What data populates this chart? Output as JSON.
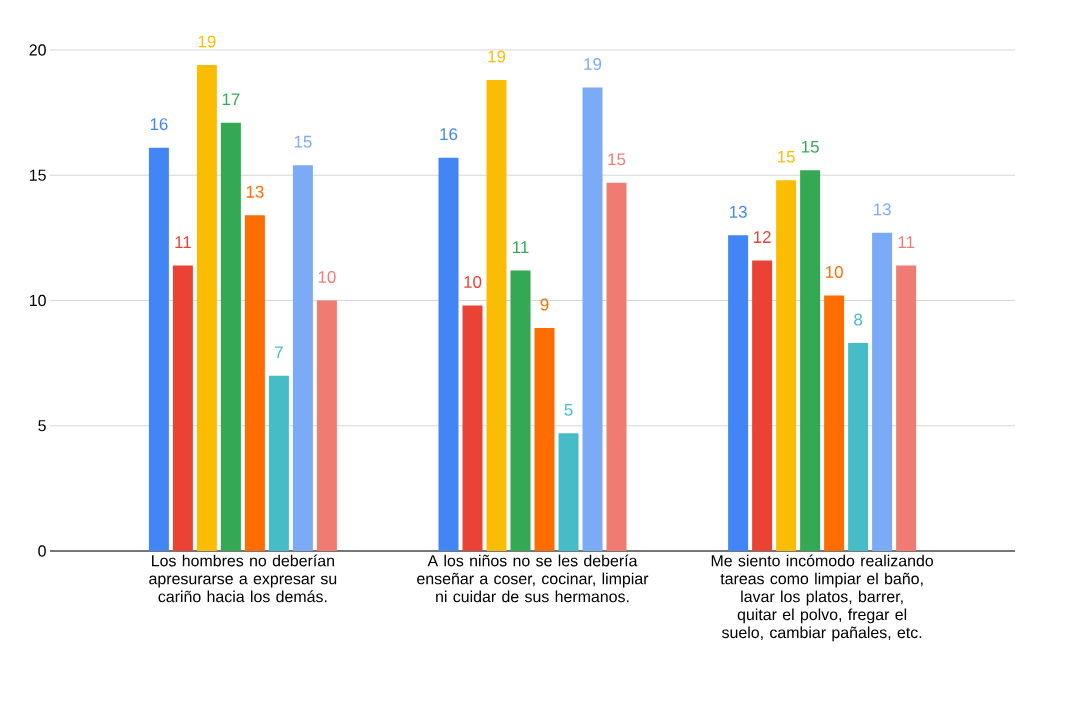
{
  "chart_data": {
    "type": "bar",
    "categories": [
      "Los hombres no deberían apresurarse a expresar su cariño hacia los demás.",
      "A los niños no se les debería enseñar a coser, cocinar, limpiar ni cuidar de sus hermanos.",
      "Me siento incómodo realizando tareas como limpiar el baño, lavar los platos, barrer, quitar el polvo, fregar el suelo, cambiar pañales, etc."
    ],
    "series": [
      {
        "color": "#4285f4",
        "values": [
          16.1,
          15.7,
          12.6
        ],
        "value_labels": [
          "16",
          "16",
          "13"
        ]
      },
      {
        "color": "#ea4335",
        "values": [
          11.4,
          9.8,
          11.6
        ],
        "value_labels": [
          "11",
          "10",
          "12"
        ]
      },
      {
        "color": "#fbbc04",
        "values": [
          19.4,
          18.8,
          14.8
        ],
        "value_labels": [
          "19",
          "19",
          "15"
        ]
      },
      {
        "color": "#34a853",
        "values": [
          17.1,
          11.2,
          15.2
        ],
        "value_labels": [
          "17",
          "11",
          "15"
        ]
      },
      {
        "color": "#ff6d01",
        "values": [
          13.4,
          8.9,
          10.2
        ],
        "value_labels": [
          "13",
          "9",
          "10"
        ]
      },
      {
        "color": "#46bdc6",
        "values": [
          7.0,
          4.7,
          8.3
        ],
        "value_labels": [
          "7",
          "5",
          "8"
        ]
      },
      {
        "color": "#7baaf7",
        "values": [
          15.4,
          18.5,
          12.7
        ],
        "value_labels": [
          "15",
          "19",
          "13"
        ]
      },
      {
        "color": "#f07b72",
        "values": [
          10.0,
          14.7,
          11.4
        ],
        "value_labels": [
          "10",
          "15",
          "11"
        ]
      }
    ],
    "ylim": [
      0,
      20
    ],
    "yticks": [
      0,
      5,
      10,
      15,
      20
    ],
    "grid": "y"
  }
}
